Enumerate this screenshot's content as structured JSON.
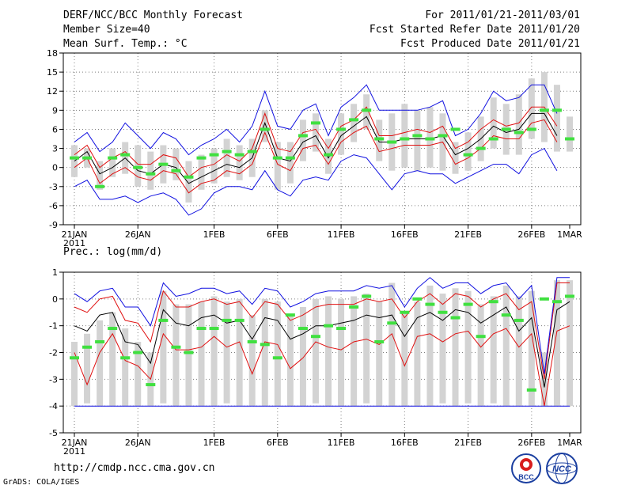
{
  "header": {
    "title": "DERF/NCC/BCC Monthly Forecast",
    "member_size": "Member Size=40",
    "variable": "Mean Surf. Temp.: °C",
    "forecast_period": "For 2011/01/21-2011/03/01",
    "start_date": "Fcst Started Refer Date 2011/01/20",
    "produced_date": "Fcst Produced Date 2011/01/21"
  },
  "footer": {
    "url": "http://cmdp.ncc.cma.gov.cn",
    "credit": "GrADS: COLA/IGES",
    "logo_bcc": "BCC",
    "logo_ncc": "NCC"
  },
  "colors": {
    "mean": "#000000",
    "inner_band": "#e01010",
    "outer_band": "#1010e0",
    "box": "#d3d3d3",
    "observed": "#40e040",
    "grid": "#7f7f7f"
  },
  "chart_data": [
    {
      "type": "line",
      "title": "Mean Surf. Temp.: °C",
      "x_tick_labels": [
        "21JAN",
        "26JAN",
        "1FEB",
        "6FEB",
        "11FEB",
        "16FEB",
        "21FEB",
        "26FEB",
        "1MAR"
      ],
      "x_tick_days": [
        1,
        6,
        12,
        17,
        22,
        27,
        32,
        37,
        40
      ],
      "year_label": "2011",
      "ylim": [
        -9,
        18
      ],
      "y_ticks": [
        -9,
        -6,
        -3,
        0,
        3,
        6,
        9,
        12,
        15,
        18
      ],
      "days": [
        1,
        2,
        3,
        4,
        5,
        6,
        7,
        8,
        9,
        10,
        11,
        12,
        13,
        14,
        15,
        16,
        17,
        18,
        19,
        20,
        21,
        22,
        23,
        24,
        25,
        26,
        27,
        28,
        29,
        30,
        31,
        32,
        33,
        34,
        35,
        36,
        37,
        38,
        39,
        40
      ],
      "series": [
        {
          "name": "ensemble mean",
          "values": [
            1.0,
            2.5,
            -1.0,
            0.0,
            1.5,
            -0.5,
            -1.0,
            0.5,
            0.0,
            -2.5,
            -1.5,
            -0.5,
            0.5,
            0.0,
            1.5,
            7.0,
            1.5,
            1.0,
            4.0,
            5.0,
            1.5,
            5.0,
            6.5,
            8.0,
            4.0,
            4.0,
            4.5,
            4.5,
            4.5,
            5.0,
            2.0,
            3.0,
            4.5,
            6.5,
            5.5,
            6.0,
            8.5,
            8.5,
            5.0,
            null
          ]
        },
        {
          "name": "upper inner",
          "values": [
            2.0,
            3.5,
            0.0,
            1.5,
            2.5,
            0.5,
            0.5,
            2.0,
            1.5,
            -1.5,
            0.0,
            0.5,
            2.0,
            1.0,
            3.0,
            8.5,
            3.0,
            2.5,
            5.5,
            6.0,
            3.0,
            6.5,
            7.5,
            9.5,
            5.0,
            5.0,
            5.5,
            6.0,
            5.5,
            6.5,
            3.0,
            4.0,
            6.0,
            7.5,
            6.5,
            7.0,
            9.5,
            9.5,
            6.5,
            null
          ]
        },
        {
          "name": "lower inner",
          "values": [
            0.0,
            1.5,
            -2.5,
            -1.0,
            0.0,
            -1.5,
            -2.0,
            -0.5,
            -1.0,
            -4.0,
            -2.5,
            -2.0,
            -0.5,
            -1.0,
            0.5,
            5.5,
            0.5,
            -0.5,
            3.0,
            3.5,
            0.5,
            4.0,
            5.5,
            6.5,
            2.5,
            3.0,
            3.5,
            3.5,
            3.5,
            4.0,
            0.5,
            1.5,
            3.0,
            5.0,
            4.5,
            4.5,
            7.0,
            7.5,
            4.0,
            null
          ]
        },
        {
          "name": "upper outer",
          "values": [
            4.0,
            5.5,
            2.5,
            4.0,
            7.0,
            5.0,
            3.0,
            5.5,
            4.5,
            2.0,
            3.5,
            4.5,
            6.0,
            4.0,
            6.5,
            12.0,
            6.5,
            6.0,
            9.0,
            10.0,
            5.0,
            9.5,
            11.0,
            13.0,
            9.0,
            9.0,
            9.0,
            9.0,
            9.5,
            10.5,
            5.0,
            6.0,
            8.5,
            12.0,
            10.5,
            11.0,
            13.0,
            13.0,
            8.5,
            null
          ]
        },
        {
          "name": "lower outer",
          "values": [
            -3.0,
            -2.0,
            -5.0,
            -5.0,
            -4.5,
            -5.5,
            -4.5,
            -4.0,
            -5.0,
            -7.5,
            -6.5,
            -4.0,
            -3.0,
            -3.0,
            -3.5,
            -0.5,
            -3.5,
            -4.5,
            -2.0,
            -1.5,
            -2.0,
            1.0,
            2.0,
            1.5,
            -1.0,
            -3.5,
            -1.0,
            -0.5,
            -1.0,
            -1.0,
            -2.5,
            -1.5,
            -0.5,
            0.5,
            0.5,
            -1.0,
            2.0,
            3.0,
            -0.5,
            null
          ]
        }
      ],
      "observed_values": [
        1.5,
        1.5,
        -3.0,
        1.5,
        2.0,
        0.0,
        -1.0,
        0.5,
        -0.5,
        -1.5,
        1.5,
        2.0,
        2.5,
        2.0,
        2.5,
        6.0,
        1.5,
        1.5,
        5.0,
        7.0,
        2.0,
        6.0,
        7.5,
        9.0,
        4.5,
        4.0,
        4.5,
        5.0,
        4.5,
        5.0,
        6.0,
        2.0,
        3.0,
        4.5,
        6.0,
        5.5,
        6.0,
        9.0,
        9.0,
        4.5
      ],
      "box_high": [
        3.5,
        3.0,
        1.0,
        3.0,
        4.0,
        3.5,
        2.5,
        3.5,
        3.0,
        1.0,
        2.0,
        3.0,
        4.5,
        3.5,
        4.5,
        9.0,
        4.0,
        4.0,
        7.5,
        8.5,
        4.5,
        8.5,
        10.0,
        11.5,
        7.5,
        8.5,
        10.0,
        9.0,
        9.5,
        8.5,
        4.0,
        5.5,
        8.0,
        11.0,
        10.0,
        11.5,
        14.0,
        15.0,
        13.0,
        8.0
      ],
      "box_low": [
        -1.5,
        0.0,
        -3.5,
        -1.5,
        -1.0,
        -3.0,
        -3.5,
        -2.5,
        -2.0,
        -5.5,
        -3.5,
        -2.5,
        -1.5,
        -2.0,
        -1.5,
        4.0,
        -3.5,
        -2.5,
        1.0,
        2.5,
        -1.0,
        2.0,
        4.0,
        6.0,
        1.0,
        -0.5,
        0.0,
        -0.5,
        0.0,
        -0.5,
        -1.0,
        -0.5,
        1.0,
        3.0,
        2.0,
        2.0,
        4.5,
        4.0,
        2.5,
        2.5
      ]
    },
    {
      "type": "line",
      "title": "Prec.: log(mm/d)",
      "x_tick_labels": [
        "21JAN",
        "26JAN",
        "1FEB",
        "6FEB",
        "11FEB",
        "16FEB",
        "21FEB",
        "26FEB",
        "1MAR"
      ],
      "x_tick_days": [
        1,
        6,
        12,
        17,
        22,
        27,
        32,
        37,
        40
      ],
      "year_label": "2011",
      "ylim": [
        -5,
        1
      ],
      "y_ticks": [
        -5,
        -4,
        -3,
        -2,
        -1,
        0,
        1
      ],
      "days": [
        1,
        2,
        3,
        4,
        5,
        6,
        7,
        8,
        9,
        10,
        11,
        12,
        13,
        14,
        15,
        16,
        17,
        18,
        19,
        20,
        21,
        22,
        23,
        24,
        25,
        26,
        27,
        28,
        29,
        30,
        31,
        32,
        33,
        34,
        35,
        36,
        37,
        38,
        39,
        40
      ],
      "series": [
        {
          "name": "ensemble mean",
          "values": [
            -1.0,
            -1.2,
            -0.6,
            -0.5,
            -1.6,
            -1.7,
            -2.4,
            -0.4,
            -0.9,
            -1.0,
            -0.7,
            -0.6,
            -0.9,
            -0.8,
            -1.5,
            -0.7,
            -0.8,
            -1.5,
            -1.3,
            -1.0,
            -1.0,
            -0.9,
            -0.8,
            -0.6,
            -0.7,
            -0.6,
            -1.4,
            -0.7,
            -0.5,
            -0.8,
            -0.4,
            -0.5,
            -0.9,
            -0.6,
            -0.3,
            -1.2,
            -0.7,
            -3.3,
            -0.4,
            -0.1
          ]
        },
        {
          "name": "upper inner",
          "values": [
            -0.3,
            -0.5,
            0.0,
            0.1,
            -0.8,
            -0.9,
            -1.6,
            0.3,
            -0.3,
            -0.3,
            -0.1,
            0.0,
            -0.2,
            -0.1,
            -0.7,
            -0.1,
            -0.2,
            -0.8,
            -0.6,
            -0.3,
            -0.2,
            -0.2,
            -0.2,
            0.0,
            -0.1,
            0.0,
            -0.7,
            -0.1,
            0.2,
            -0.2,
            0.2,
            0.1,
            -0.3,
            0.0,
            0.2,
            -0.4,
            -0.1,
            -3.0,
            0.6,
            0.6
          ]
        },
        {
          "name": "lower inner",
          "values": [
            -2.0,
            -3.2,
            -2.0,
            -1.3,
            -2.3,
            -2.5,
            -3.0,
            -1.3,
            -1.9,
            -1.9,
            -1.8,
            -1.4,
            -1.8,
            -1.6,
            -2.8,
            -1.6,
            -1.7,
            -2.6,
            -2.2,
            -1.6,
            -1.8,
            -1.9,
            -1.6,
            -1.5,
            -1.7,
            -1.3,
            -2.5,
            -1.4,
            -1.3,
            -1.6,
            -1.3,
            -1.2,
            -1.8,
            -1.3,
            -1.1,
            -1.8,
            -1.3,
            -4.0,
            -1.2,
            -1.0
          ]
        },
        {
          "name": "upper outer",
          "values": [
            0.2,
            -0.1,
            0.3,
            0.4,
            -0.3,
            -0.3,
            -1.0,
            0.6,
            0.1,
            0.2,
            0.4,
            0.4,
            0.2,
            0.3,
            -0.2,
            0.4,
            0.3,
            -0.3,
            -0.1,
            0.2,
            0.3,
            0.3,
            0.3,
            0.5,
            0.4,
            0.5,
            -0.3,
            0.4,
            0.8,
            0.4,
            0.6,
            0.6,
            0.2,
            0.5,
            0.6,
            0.0,
            0.5,
            -2.8,
            0.8,
            0.8
          ]
        },
        {
          "name": "lower outer",
          "values": [
            -4.0,
            -4.0,
            -4.0,
            -4.0,
            -4.0,
            -4.0,
            -4.0,
            -4.0,
            -4.0,
            -4.0,
            -4.0,
            -4.0,
            -4.0,
            -4.0,
            -4.0,
            -4.0,
            -4.0,
            -4.0,
            -4.0,
            -4.0,
            -4.0,
            -4.0,
            -4.0,
            -4.0,
            -4.0,
            -4.0,
            -4.0,
            -4.0,
            -4.0,
            -4.0,
            -4.0,
            -4.0,
            -4.0,
            -4.0,
            -4.0,
            -4.0,
            -4.0,
            -4.0,
            -4.0,
            -4.0
          ]
        }
      ],
      "observed_values": [
        -2.2,
        -1.8,
        -1.6,
        -1.1,
        -2.2,
        -2.0,
        -3.2,
        -0.8,
        -1.8,
        -2.0,
        -1.1,
        -1.1,
        -0.8,
        -0.8,
        -1.6,
        -1.7,
        -2.2,
        -0.6,
        -1.1,
        -1.4,
        -1.0,
        -1.1,
        -0.3,
        0.1,
        -1.6,
        -0.9,
        -0.5,
        0.0,
        -0.2,
        -0.5,
        -0.7,
        -0.2,
        -1.4,
        -0.1,
        -0.6,
        -0.8,
        -3.4,
        0.0,
        -0.1,
        0.1
      ],
      "box_high": [
        -1.6,
        -1.3,
        -0.8,
        -0.5,
        -1.1,
        -1.6,
        -2.0,
        0.3,
        -0.2,
        -0.2,
        -0.1,
        0.1,
        -0.1,
        0.0,
        -0.6,
        0.0,
        -0.1,
        -0.6,
        -0.3,
        0.0,
        0.1,
        0.0,
        0.1,
        0.2,
        -0.1,
        0.6,
        -0.5,
        -0.1,
        0.5,
        0.2,
        0.4,
        0.3,
        -0.2,
        0.1,
        0.5,
        0.1,
        0.3,
        -2.0,
        0.7,
        0.7
      ],
      "box_low": [
        -4.0,
        -3.9,
        -4.0,
        -4.0,
        -4.0,
        -4.0,
        -4.0,
        -3.9,
        -4.0,
        -4.0,
        -4.0,
        -4.0,
        -3.9,
        -4.0,
        -4.0,
        -4.0,
        -4.0,
        -4.0,
        -4.0,
        -3.9,
        -4.0,
        -4.0,
        -4.0,
        -3.9,
        -4.0,
        -4.0,
        -4.0,
        -4.0,
        -4.0,
        -3.9,
        -4.0,
        -3.9,
        -4.0,
        -3.9,
        -4.0,
        -4.0,
        -4.0,
        -4.0,
        -4.0,
        -4.0
      ]
    }
  ]
}
